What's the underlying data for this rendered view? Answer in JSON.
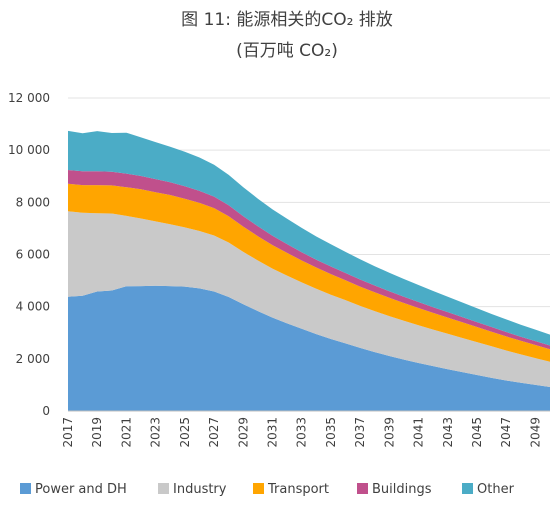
{
  "chart_data": {
    "type": "area",
    "title": "图 11: 能源相关的CO₂ 排放",
    "subtitle": "(百万吨 CO₂)",
    "xlabel": "",
    "ylabel": "",
    "ylim": [
      0,
      12000
    ],
    "yticks": [
      0,
      2000,
      4000,
      6000,
      8000,
      10000,
      12000
    ],
    "ytick_labels": [
      "0",
      "2 000",
      "4 000",
      "6 000",
      "8 000",
      "10 000",
      "12 000"
    ],
    "xtick_labels": [
      "2017",
      "2019",
      "2021",
      "2023",
      "2025",
      "2027",
      "2029",
      "2031",
      "2033",
      "2035",
      "2037",
      "2039",
      "2041",
      "2043",
      "2045",
      "2047",
      "2049"
    ],
    "grid": true,
    "stacked": true,
    "legend_position": "bottom",
    "x": [
      2017,
      2018,
      2019,
      2020,
      2021,
      2022,
      2023,
      2024,
      2025,
      2026,
      2027,
      2028,
      2029,
      2030,
      2031,
      2032,
      2033,
      2034,
      2035,
      2036,
      2037,
      2038,
      2039,
      2040,
      2041,
      2042,
      2043,
      2044,
      2045,
      2046,
      2047,
      2048,
      2049,
      2050
    ],
    "series": [
      {
        "name": "Power and DH",
        "color": "#5B9BD5",
        "values": [
          4380,
          4420,
          4580,
          4620,
          4780,
          4790,
          4800,
          4790,
          4770,
          4700,
          4580,
          4370,
          4090,
          3830,
          3580,
          3360,
          3150,
          2950,
          2760,
          2590,
          2420,
          2260,
          2110,
          1970,
          1840,
          1720,
          1600,
          1490,
          1380,
          1270,
          1170,
          1080,
          1000,
          920
        ]
      },
      {
        "name": "Industry",
        "color": "#C9C9C9",
        "values": [
          3280,
          3180,
          3000,
          2950,
          2700,
          2590,
          2470,
          2370,
          2270,
          2200,
          2150,
          2090,
          2010,
          1940,
          1880,
          1830,
          1780,
          1740,
          1700,
          1660,
          1610,
          1570,
          1530,
          1490,
          1450,
          1400,
          1360,
          1310,
          1260,
          1210,
          1150,
          1090,
          1030,
          970
        ]
      },
      {
        "name": "Transport",
        "color": "#FFA500",
        "values": [
          1050,
          1060,
          1080,
          1080,
          1100,
          1120,
          1120,
          1120,
          1100,
          1080,
          1050,
          1010,
          970,
          930,
          900,
          870,
          840,
          810,
          790,
          760,
          740,
          720,
          700,
          680,
          660,
          640,
          620,
          600,
          580,
          560,
          540,
          520,
          500,
          480
        ]
      },
      {
        "name": "Buildings",
        "color": "#C0508C",
        "values": [
          530,
          530,
          530,
          520,
          520,
          510,
          500,
          490,
          480,
          460,
          440,
          420,
          400,
          380,
          360,
          340,
          320,
          300,
          290,
          280,
          270,
          260,
          250,
          240,
          230,
          220,
          210,
          200,
          190,
          180,
          170,
          160,
          150,
          140
        ]
      },
      {
        "name": "Other",
        "color": "#4BACC6",
        "values": [
          1500,
          1460,
          1540,
          1490,
          1570,
          1480,
          1420,
          1360,
          1320,
          1280,
          1220,
          1160,
          1110,
          1060,
          1010,
          970,
          930,
          890,
          850,
          810,
          780,
          740,
          710,
          680,
          650,
          620,
          590,
          560,
          530,
          500,
          480,
          460,
          440,
          420
        ]
      }
    ]
  }
}
